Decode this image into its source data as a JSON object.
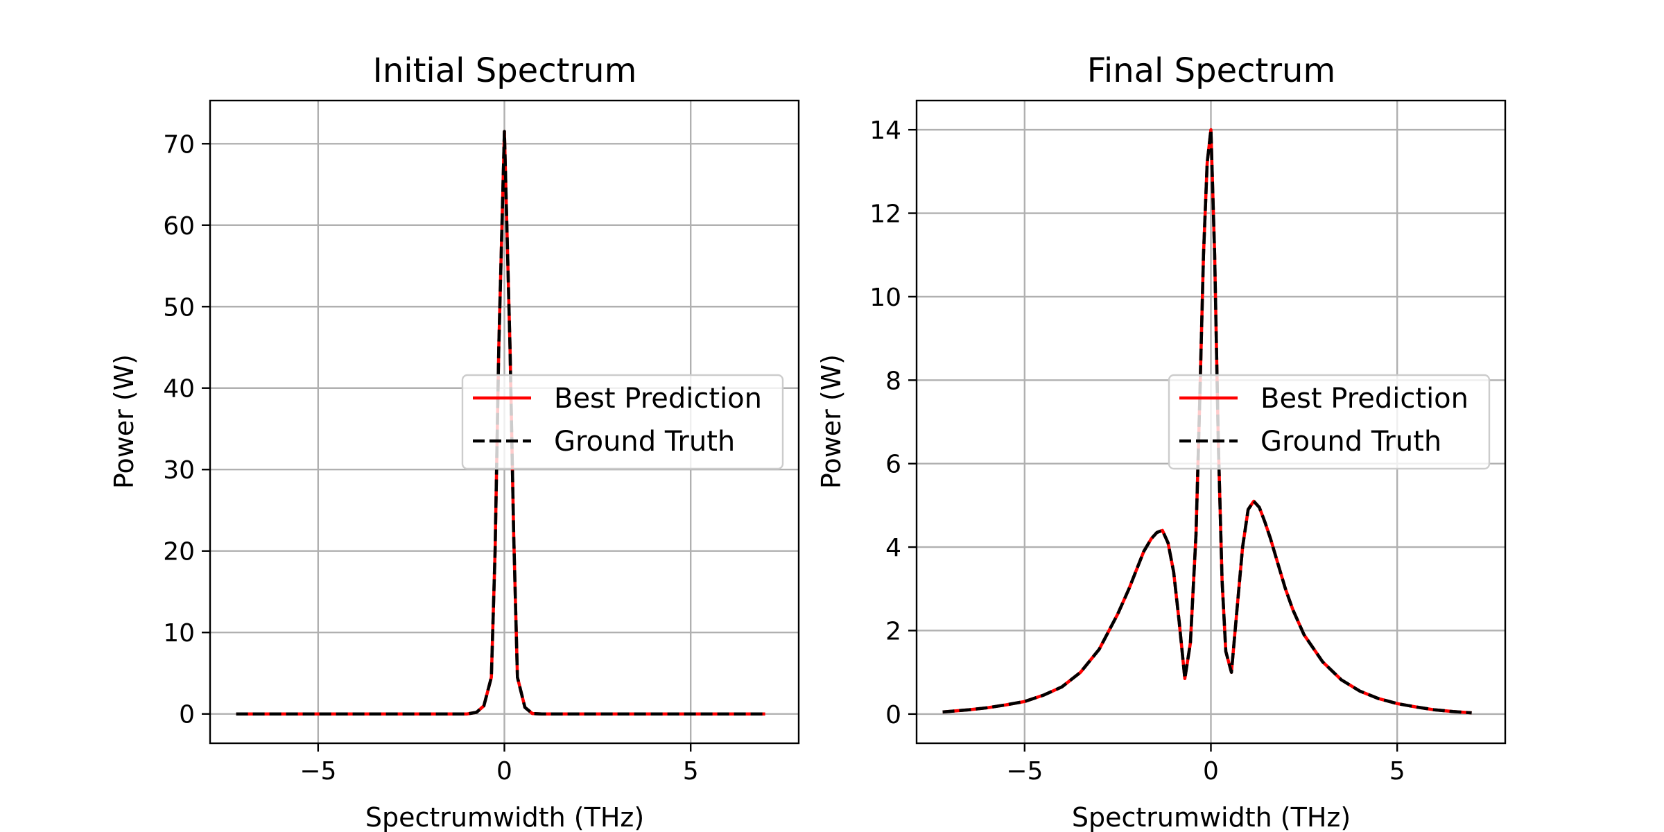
{
  "chart_data": [
    {
      "type": "line",
      "title": "Initial Spectrum",
      "xlabel": "Spectrumwidth (THz)",
      "ylabel": "Power (W)",
      "xlim": [
        -7.9,
        7.9
      ],
      "ylim": [
        -3.6,
        75.3
      ],
      "grid": true,
      "legend_placement": "center-right",
      "xticks": [
        -5,
        0,
        5
      ],
      "xtick_labels": [
        "−5",
        "0",
        "5"
      ],
      "yticks": [
        0,
        10,
        20,
        30,
        40,
        50,
        60,
        70
      ],
      "ytick_labels": [
        "0",
        "10",
        "20",
        "30",
        "40",
        "50",
        "60",
        "70"
      ],
      "series": [
        {
          "name": "Best Prediction",
          "color": "#ff0000",
          "style": "solid",
          "x": [
            -7.2,
            -1.0,
            -0.75,
            -0.55,
            -0.35,
            -0.25,
            -0.15,
            0.0,
            0.15,
            0.25,
            0.35,
            0.55,
            0.75,
            1.0,
            7.0
          ],
          "y": [
            0,
            0,
            0.2,
            1.0,
            4.5,
            20,
            45,
            71.5,
            45,
            22,
            4.5,
            0.8,
            0.05,
            0,
            0
          ]
        },
        {
          "name": "Ground Truth",
          "color": "#000000",
          "style": "dashed",
          "x": [
            -7.2,
            -1.0,
            -0.75,
            -0.55,
            -0.35,
            -0.25,
            -0.15,
            0.0,
            0.15,
            0.25,
            0.35,
            0.55,
            0.75,
            1.0,
            7.0
          ],
          "y": [
            0,
            0,
            0.2,
            1.0,
            4.5,
            20,
            45,
            71.5,
            45,
            22,
            4.5,
            0.8,
            0.05,
            0,
            0
          ]
        }
      ]
    },
    {
      "type": "line",
      "title": "Final Spectrum",
      "xlabel": "Spectrumwidth (THz)",
      "ylabel": "Power (W)",
      "xlim": [
        -7.9,
        7.9
      ],
      "ylim": [
        -0.7,
        14.7
      ],
      "grid": true,
      "legend_placement": "center-right",
      "xticks": [
        -5,
        0,
        5
      ],
      "xtick_labels": [
        "−5",
        "0",
        "5"
      ],
      "yticks": [
        0,
        2,
        4,
        6,
        8,
        10,
        12,
        14
      ],
      "ytick_labels": [
        "0",
        "2",
        "4",
        "6",
        "8",
        "10",
        "12",
        "14"
      ],
      "series": [
        {
          "name": "Best Prediction",
          "color": "#ff0000",
          "style": "solid",
          "x": [
            -7.2,
            -6.5,
            -6.0,
            -5.5,
            -5.0,
            -4.5,
            -4.0,
            -3.5,
            -3.0,
            -2.5,
            -2.2,
            -2.0,
            -1.8,
            -1.6,
            -1.45,
            -1.3,
            -1.15,
            -1.0,
            -0.85,
            -0.7,
            -0.55,
            -0.4,
            -0.3,
            -0.2,
            -0.1,
            0.0,
            0.1,
            0.2,
            0.3,
            0.4,
            0.55,
            0.7,
            0.85,
            1.0,
            1.15,
            1.3,
            1.45,
            1.6,
            1.8,
            2.0,
            2.2,
            2.5,
            3.0,
            3.5,
            4.0,
            4.5,
            5.0,
            5.5,
            6.0,
            6.5,
            7.0
          ],
          "y": [
            0.05,
            0.1,
            0.15,
            0.22,
            0.3,
            0.45,
            0.65,
            1.0,
            1.55,
            2.4,
            3.0,
            3.45,
            3.9,
            4.2,
            4.35,
            4.4,
            4.1,
            3.4,
            2.2,
            0.85,
            1.7,
            4.3,
            7.5,
            11.0,
            13.2,
            14.0,
            11.0,
            6.5,
            3.2,
            1.5,
            1.0,
            2.5,
            4.0,
            4.9,
            5.1,
            4.95,
            4.6,
            4.2,
            3.6,
            3.0,
            2.5,
            1.9,
            1.25,
            0.82,
            0.55,
            0.37,
            0.25,
            0.17,
            0.1,
            0.06,
            0.03
          ]
        },
        {
          "name": "Ground Truth",
          "color": "#000000",
          "style": "dashed",
          "x": [
            -7.2,
            -6.5,
            -6.0,
            -5.5,
            -5.0,
            -4.5,
            -4.0,
            -3.5,
            -3.0,
            -2.5,
            -2.2,
            -2.0,
            -1.8,
            -1.6,
            -1.45,
            -1.3,
            -1.15,
            -1.0,
            -0.85,
            -0.7,
            -0.55,
            -0.4,
            -0.3,
            -0.2,
            -0.1,
            0.0,
            0.1,
            0.2,
            0.3,
            0.4,
            0.55,
            0.7,
            0.85,
            1.0,
            1.15,
            1.3,
            1.45,
            1.6,
            1.8,
            2.0,
            2.2,
            2.5,
            3.0,
            3.5,
            4.0,
            4.5,
            5.0,
            5.5,
            6.0,
            6.5,
            7.0
          ],
          "y": [
            0.05,
            0.1,
            0.15,
            0.22,
            0.3,
            0.45,
            0.65,
            1.0,
            1.55,
            2.4,
            3.0,
            3.45,
            3.9,
            4.2,
            4.35,
            4.4,
            4.1,
            3.4,
            2.2,
            0.85,
            1.7,
            4.3,
            7.5,
            11.0,
            13.2,
            14.0,
            11.0,
            6.5,
            3.2,
            1.5,
            1.0,
            2.5,
            4.0,
            4.9,
            5.1,
            4.95,
            4.6,
            4.2,
            3.6,
            3.0,
            2.5,
            1.9,
            1.25,
            0.82,
            0.55,
            0.37,
            0.25,
            0.17,
            0.1,
            0.06,
            0.03
          ]
        }
      ]
    }
  ]
}
